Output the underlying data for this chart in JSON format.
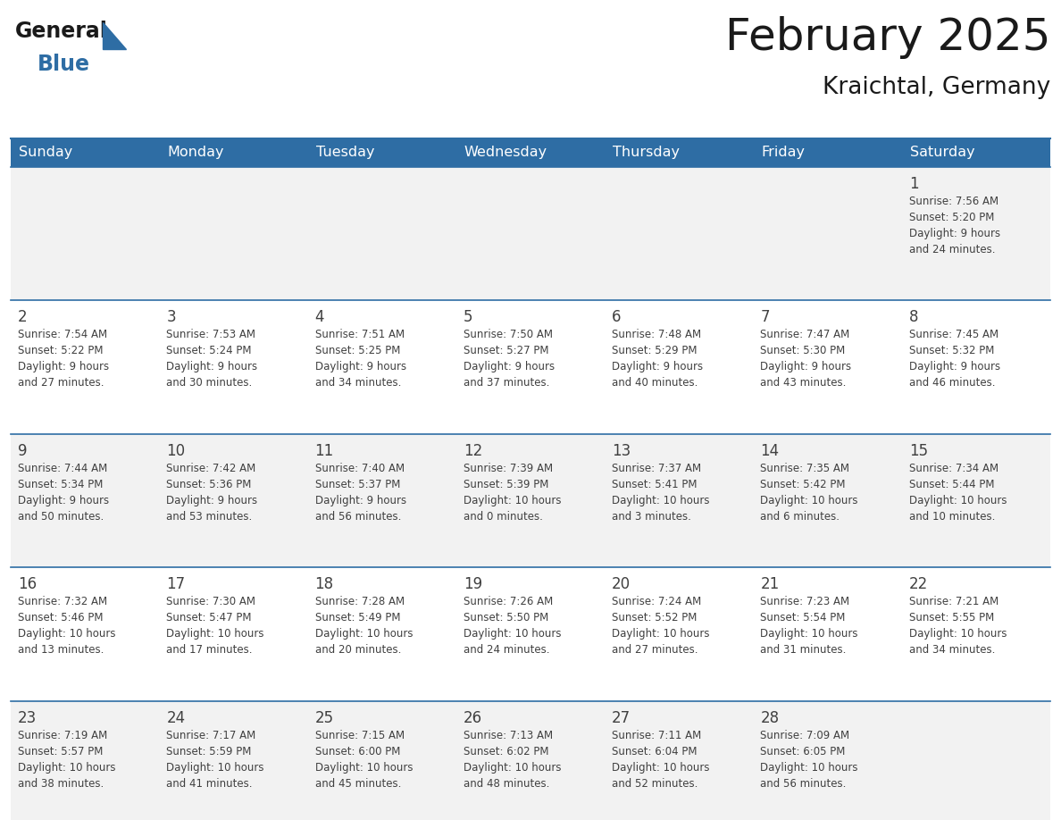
{
  "title": "February 2025",
  "subtitle": "Kraichtal, Germany",
  "header_bg": "#2E6DA4",
  "header_text_color": "#FFFFFF",
  "cell_bg_odd": "#F2F2F2",
  "cell_bg_even": "#FFFFFF",
  "border_color": "#2E6DA4",
  "text_color": "#404040",
  "day_headers": [
    "Sunday",
    "Monday",
    "Tuesday",
    "Wednesday",
    "Thursday",
    "Friday",
    "Saturday"
  ],
  "days": [
    {
      "day": 1,
      "col": 6,
      "row": 0,
      "sunrise": "7:56 AM",
      "sunset": "5:20 PM",
      "daylight_h": "9 hours",
      "daylight_m": "and 24 minutes."
    },
    {
      "day": 2,
      "col": 0,
      "row": 1,
      "sunrise": "7:54 AM",
      "sunset": "5:22 PM",
      "daylight_h": "9 hours",
      "daylight_m": "and 27 minutes."
    },
    {
      "day": 3,
      "col": 1,
      "row": 1,
      "sunrise": "7:53 AM",
      "sunset": "5:24 PM",
      "daylight_h": "9 hours",
      "daylight_m": "and 30 minutes."
    },
    {
      "day": 4,
      "col": 2,
      "row": 1,
      "sunrise": "7:51 AM",
      "sunset": "5:25 PM",
      "daylight_h": "9 hours",
      "daylight_m": "and 34 minutes."
    },
    {
      "day": 5,
      "col": 3,
      "row": 1,
      "sunrise": "7:50 AM",
      "sunset": "5:27 PM",
      "daylight_h": "9 hours",
      "daylight_m": "and 37 minutes."
    },
    {
      "day": 6,
      "col": 4,
      "row": 1,
      "sunrise": "7:48 AM",
      "sunset": "5:29 PM",
      "daylight_h": "9 hours",
      "daylight_m": "and 40 minutes."
    },
    {
      "day": 7,
      "col": 5,
      "row": 1,
      "sunrise": "7:47 AM",
      "sunset": "5:30 PM",
      "daylight_h": "9 hours",
      "daylight_m": "and 43 minutes."
    },
    {
      "day": 8,
      "col": 6,
      "row": 1,
      "sunrise": "7:45 AM",
      "sunset": "5:32 PM",
      "daylight_h": "9 hours",
      "daylight_m": "and 46 minutes."
    },
    {
      "day": 9,
      "col": 0,
      "row": 2,
      "sunrise": "7:44 AM",
      "sunset": "5:34 PM",
      "daylight_h": "9 hours",
      "daylight_m": "and 50 minutes."
    },
    {
      "day": 10,
      "col": 1,
      "row": 2,
      "sunrise": "7:42 AM",
      "sunset": "5:36 PM",
      "daylight_h": "9 hours",
      "daylight_m": "and 53 minutes."
    },
    {
      "day": 11,
      "col": 2,
      "row": 2,
      "sunrise": "7:40 AM",
      "sunset": "5:37 PM",
      "daylight_h": "9 hours",
      "daylight_m": "and 56 minutes."
    },
    {
      "day": 12,
      "col": 3,
      "row": 2,
      "sunrise": "7:39 AM",
      "sunset": "5:39 PM",
      "daylight_h": "10 hours",
      "daylight_m": "and 0 minutes."
    },
    {
      "day": 13,
      "col": 4,
      "row": 2,
      "sunrise": "7:37 AM",
      "sunset": "5:41 PM",
      "daylight_h": "10 hours",
      "daylight_m": "and 3 minutes."
    },
    {
      "day": 14,
      "col": 5,
      "row": 2,
      "sunrise": "7:35 AM",
      "sunset": "5:42 PM",
      "daylight_h": "10 hours",
      "daylight_m": "and 6 minutes."
    },
    {
      "day": 15,
      "col": 6,
      "row": 2,
      "sunrise": "7:34 AM",
      "sunset": "5:44 PM",
      "daylight_h": "10 hours",
      "daylight_m": "and 10 minutes."
    },
    {
      "day": 16,
      "col": 0,
      "row": 3,
      "sunrise": "7:32 AM",
      "sunset": "5:46 PM",
      "daylight_h": "10 hours",
      "daylight_m": "and 13 minutes."
    },
    {
      "day": 17,
      "col": 1,
      "row": 3,
      "sunrise": "7:30 AM",
      "sunset": "5:47 PM",
      "daylight_h": "10 hours",
      "daylight_m": "and 17 minutes."
    },
    {
      "day": 18,
      "col": 2,
      "row": 3,
      "sunrise": "7:28 AM",
      "sunset": "5:49 PM",
      "daylight_h": "10 hours",
      "daylight_m": "and 20 minutes."
    },
    {
      "day": 19,
      "col": 3,
      "row": 3,
      "sunrise": "7:26 AM",
      "sunset": "5:50 PM",
      "daylight_h": "10 hours",
      "daylight_m": "and 24 minutes."
    },
    {
      "day": 20,
      "col": 4,
      "row": 3,
      "sunrise": "7:24 AM",
      "sunset": "5:52 PM",
      "daylight_h": "10 hours",
      "daylight_m": "and 27 minutes."
    },
    {
      "day": 21,
      "col": 5,
      "row": 3,
      "sunrise": "7:23 AM",
      "sunset": "5:54 PM",
      "daylight_h": "10 hours",
      "daylight_m": "and 31 minutes."
    },
    {
      "day": 22,
      "col": 6,
      "row": 3,
      "sunrise": "7:21 AM",
      "sunset": "5:55 PM",
      "daylight_h": "10 hours",
      "daylight_m": "and 34 minutes."
    },
    {
      "day": 23,
      "col": 0,
      "row": 4,
      "sunrise": "7:19 AM",
      "sunset": "5:57 PM",
      "daylight_h": "10 hours",
      "daylight_m": "and 38 minutes."
    },
    {
      "day": 24,
      "col": 1,
      "row": 4,
      "sunrise": "7:17 AM",
      "sunset": "5:59 PM",
      "daylight_h": "10 hours",
      "daylight_m": "and 41 minutes."
    },
    {
      "day": 25,
      "col": 2,
      "row": 4,
      "sunrise": "7:15 AM",
      "sunset": "6:00 PM",
      "daylight_h": "10 hours",
      "daylight_m": "and 45 minutes."
    },
    {
      "day": 26,
      "col": 3,
      "row": 4,
      "sunrise": "7:13 AM",
      "sunset": "6:02 PM",
      "daylight_h": "10 hours",
      "daylight_m": "and 48 minutes."
    },
    {
      "day": 27,
      "col": 4,
      "row": 4,
      "sunrise": "7:11 AM",
      "sunset": "6:04 PM",
      "daylight_h": "10 hours",
      "daylight_m": "and 52 minutes."
    },
    {
      "day": 28,
      "col": 5,
      "row": 4,
      "sunrise": "7:09 AM",
      "sunset": "6:05 PM",
      "daylight_h": "10 hours",
      "daylight_m": "and 56 minutes."
    }
  ],
  "num_rows": 5
}
